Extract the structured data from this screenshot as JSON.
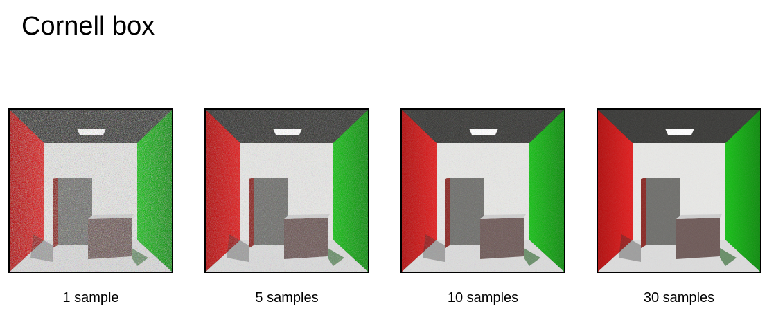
{
  "page": {
    "title": "Cornell box"
  },
  "renders": [
    {
      "caption": "1 sample",
      "noise": 0.55
    },
    {
      "caption": "5 samples",
      "noise": 0.32
    },
    {
      "caption": "10 samples",
      "noise": 0.2
    },
    {
      "caption": "30 samples",
      "noise": 0.1
    }
  ],
  "colors": {
    "red_wall": "#e02020",
    "green_wall": "#18c018",
    "back_wall": "#e8e8e6",
    "ceiling": "#3a3a38",
    "floor": "#dcdcdc",
    "box": "#6e5a58",
    "light": "#ffffff"
  }
}
